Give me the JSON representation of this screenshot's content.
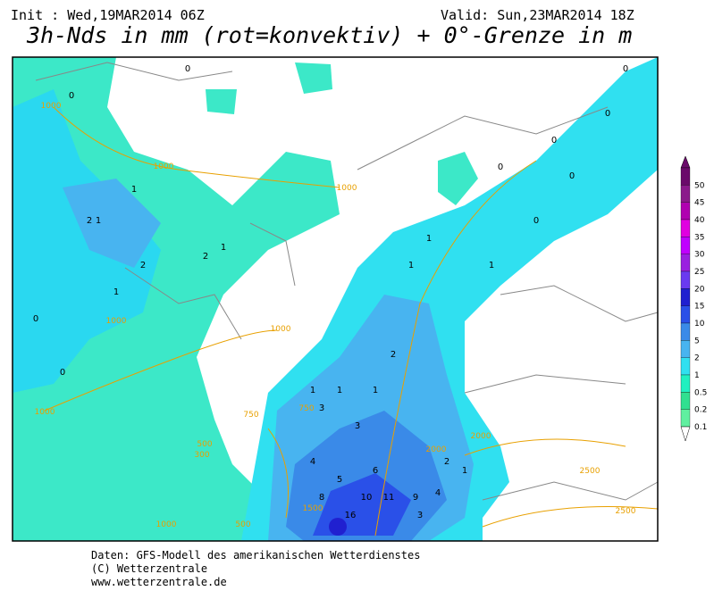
{
  "header": {
    "init": "Init : Wed,19MAR2014 06Z",
    "valid": "Valid: Sun,23MAR2014 18Z",
    "title": "3h-Nds in mm (rot=konvektiv) + 0°-Grenze in m"
  },
  "legend": {
    "labels": [
      "50",
      "45",
      "40",
      "35",
      "30",
      "25",
      "20",
      "15",
      "10",
      "5",
      "2",
      "1",
      "0.5",
      "0.2",
      "0.1"
    ],
    "colors": [
      "#6a0a6a",
      "#8b1a8b",
      "#b000b0",
      "#e000e0",
      "#c000ff",
      "#9a20e0",
      "#6a3af0",
      "#2020d0",
      "#2a50e8",
      "#3a8ae8",
      "#48b4f0",
      "#30e0f0",
      "#20f0c0",
      "#30e090",
      "#60f0a0"
    ]
  },
  "contour_labels": [
    "1000",
    "1000",
    "1000",
    "1000",
    "1000",
    "1000",
    "750",
    "750",
    "500",
    "300",
    "1000",
    "500",
    "1500",
    "2000",
    "2000",
    "2500",
    "2500"
  ],
  "map_labels": [
    "0",
    "0",
    "0",
    "1",
    "1",
    "2",
    "2",
    "1",
    "0",
    "0",
    "1",
    "1",
    "1",
    "2",
    "3",
    "3",
    "4",
    "5",
    "6",
    "8",
    "10",
    "11",
    "16",
    "9",
    "4",
    "3",
    "2",
    "1",
    "1",
    "0",
    "0",
    "0",
    "1",
    "1",
    "0",
    "0",
    "1",
    "2"
  ],
  "footer": {
    "line1": "Daten: GFS-Modell des amerikanischen Wetterdienstes",
    "line2": "(C) Wetterzentrale",
    "line3": "www.wetterzentrale.de"
  }
}
